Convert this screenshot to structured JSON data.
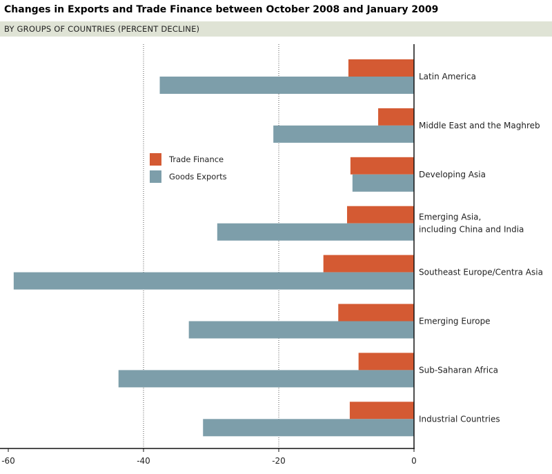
{
  "chart_data": {
    "type": "bar",
    "orientation": "horizontal",
    "title": "Changes in Exports and Trade Finance between October 2008 and January 2009",
    "subtitle": "BY GROUPS OF COUNTRIES (PERCENT DECLINE)",
    "categories": [
      "Latin America",
      "Middle East and the Maghreb",
      "Developing Asia",
      "Emerging Asia,\nincluding China and India",
      "Southeast Europe/Centra Asia",
      "Emerging Europe",
      "Sub-Saharan Africa",
      "Industrial Countries"
    ],
    "series": [
      {
        "name": "Trade Finance",
        "color": "#d45a33",
        "values": [
          -9.7,
          -5.3,
          -9.4,
          -9.9,
          -13.4,
          -11.2,
          -8.2,
          -9.5
        ]
      },
      {
        "name": "Goods Exports",
        "color": "#7d9eaa",
        "values": [
          -37.6,
          -20.8,
          -9.1,
          -29.1,
          -59.2,
          -33.3,
          -43.7,
          -31.2
        ]
      }
    ],
    "xlim": [
      -60,
      0
    ],
    "xticks": [
      -60,
      -40,
      -20,
      0
    ],
    "xtick_labels": [
      "-60",
      "-40",
      "-20",
      "0"
    ],
    "grid": "vertical dotted at -40 and -20",
    "legend": "center-left"
  }
}
